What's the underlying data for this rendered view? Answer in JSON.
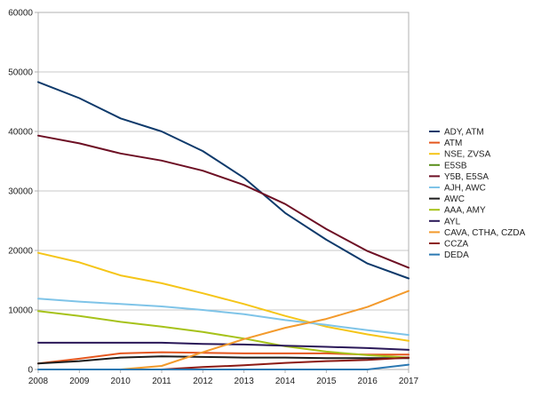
{
  "chart_data": {
    "type": "line",
    "title": "",
    "xlabel": "",
    "ylabel": "",
    "x": [
      2008,
      2009,
      2010,
      2011,
      2012,
      2013,
      2014,
      2015,
      2016,
      2017
    ],
    "ylim": [
      0,
      60000
    ],
    "yticks": [
      0,
      10000,
      20000,
      30000,
      40000,
      50000,
      60000
    ],
    "grid": "horizontal",
    "legend_position": "right",
    "series": [
      {
        "name": "ADY, ATM",
        "color": "#0e3a6b",
        "values": [
          48300,
          45600,
          42200,
          40000,
          36700,
          32200,
          26300,
          21800,
          17800,
          15300
        ]
      },
      {
        "name": "ATM",
        "color": "#e4561e",
        "values": [
          1000,
          1800,
          2700,
          2900,
          2800,
          2700,
          2700,
          2700,
          2500,
          2500
        ]
      },
      {
        "name": "NSE, ZVSA",
        "color": "#f5c518",
        "values": [
          19600,
          18000,
          15800,
          14500,
          12800,
          11000,
          9000,
          7200,
          5900,
          4800
        ]
      },
      {
        "name": "E5SB",
        "color": "#5b8f1d",
        "values": [
          null,
          null,
          null,
          null,
          null,
          null,
          null,
          null,
          null,
          null
        ]
      },
      {
        "name": "Y5B, E5SA",
        "color": "#6d0f24",
        "values": [
          39300,
          38000,
          36300,
          35100,
          33400,
          31000,
          27800,
          23600,
          19900,
          17100
        ]
      },
      {
        "name": "AJH, AWC",
        "color": "#7fc4e8",
        "values": [
          11900,
          11400,
          11000,
          10600,
          10000,
          9300,
          8300,
          7500,
          6600,
          5800
        ]
      },
      {
        "name": "AWC",
        "color": "#1c1c1c",
        "values": [
          1000,
          1400,
          2000,
          2200,
          2100,
          2000,
          2000,
          1900,
          1900,
          1900
        ]
      },
      {
        "name": "AAA, AMY",
        "color": "#a6c21a",
        "values": [
          9800,
          9000,
          8000,
          7200,
          6300,
          5200,
          3900,
          3000,
          2400,
          2000
        ]
      },
      {
        "name": "AYL",
        "color": "#2a1858",
        "values": [
          4500,
          4500,
          4500,
          4500,
          4300,
          4200,
          4000,
          3800,
          3600,
          3300
        ]
      },
      {
        "name": "CAVA, CTHA, CZDA",
        "color": "#f39a2c",
        "values": [
          null,
          null,
          0,
          600,
          2900,
          5100,
          7000,
          8500,
          10500,
          13200
        ]
      },
      {
        "name": "CCZA",
        "color": "#8c1a14",
        "values": [
          null,
          null,
          null,
          0,
          400,
          700,
          1100,
          1400,
          1600,
          2000
        ]
      },
      {
        "name": "DEDA",
        "color": "#2b78b2",
        "values": [
          0,
          0,
          0,
          0,
          0,
          0,
          0,
          0,
          0,
          800
        ]
      }
    ]
  }
}
